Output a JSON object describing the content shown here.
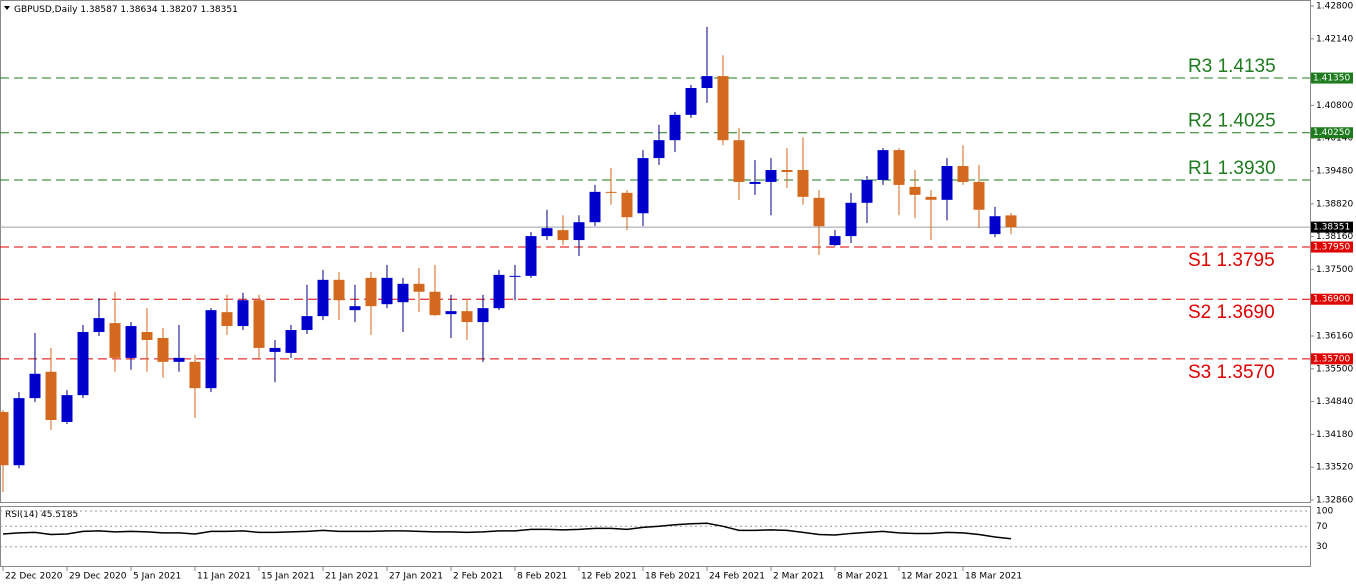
{
  "chart_data": {
    "type": "candlestick",
    "title": "GBPUSD,Daily",
    "categories": [
      "22 Dec 2020",
      null,
      null,
      null,
      "29 Dec 2020",
      null,
      null,
      null,
      "5 Jan 2021",
      null,
      null,
      null,
      "11 Jan 2021",
      null,
      null,
      null,
      "15 Jan 2021",
      null,
      null,
      null,
      "21 Jan 2021",
      null,
      null,
      null,
      "27 Jan 2021",
      null,
      null,
      null,
      "2 Feb 2021",
      null,
      null,
      null,
      "8 Feb 2021",
      null,
      null,
      null,
      "12 Feb 2021",
      null,
      null,
      null,
      "18 Feb 2021",
      null,
      null,
      null,
      "24 Feb 2021",
      null,
      null,
      null,
      "2 Mar 2021",
      null,
      null,
      null,
      "8 Mar 2021",
      null,
      null,
      null,
      "12 Mar 2021",
      null,
      null,
      null,
      "18 Mar 2021",
      null,
      null,
      null
    ],
    "open": [
      1.3463,
      1.3356,
      1.3491,
      1.3544,
      1.3443,
      1.3497,
      1.3624,
      1.3642,
      1.3572,
      1.3624,
      1.3612,
      1.3564,
      1.3564,
      1.3511,
      1.3664,
      1.3636,
      1.3688,
      1.3584,
      1.3582,
      1.3628,
      1.3656,
      1.3729,
      1.3668,
      1.3733,
      1.368,
      1.3684,
      1.3721,
      1.3705,
      1.366,
      1.3666,
      1.3644,
      1.3672,
      1.3735,
      1.3737,
      1.3817,
      1.3829,
      1.3809,
      1.3845,
      1.3906,
      1.3904,
      1.3863,
      1.3974,
      1.401,
      1.4061,
      1.4115,
      1.4139,
      1.401,
      1.3922,
      1.3926,
      1.395,
      1.395,
      1.3894,
      1.3799,
      1.3817,
      1.3884,
      1.393,
      1.399,
      1.3916,
      1.3896,
      1.389,
      1.3958,
      1.3926,
      1.3821,
      1.38587
    ],
    "high": [
      1.3467,
      1.3503,
      1.3622,
      1.3592,
      1.3507,
      1.3638,
      1.3692,
      1.3705,
      1.3644,
      1.3672,
      1.3632,
      1.3638,
      1.3578,
      1.3672,
      1.3699,
      1.3703,
      1.3699,
      1.3608,
      1.3638,
      1.3719,
      1.3749,
      1.3745,
      1.3719,
      1.3745,
      1.3759,
      1.3733,
      1.3753,
      1.3759,
      1.3699,
      1.3688,
      1.3699,
      1.3749,
      1.3759,
      1.3825,
      1.387,
      1.3859,
      1.3859,
      1.392,
      1.3954,
      1.391,
      1.399,
      1.4041,
      1.4067,
      1.4121,
      1.4238,
      1.4181,
      1.4035,
      1.397,
      1.3974,
      1.3994,
      1.4016,
      1.391,
      1.3829,
      1.3904,
      1.3938,
      1.3994,
      1.3994,
      1.395,
      1.391,
      1.3974,
      1.4,
      1.396,
      1.3876,
      1.38634
    ],
    "low": [
      1.3302,
      1.335,
      1.3483,
      1.3427,
      1.3439,
      1.3491,
      1.3616,
      1.3544,
      1.3548,
      1.3544,
      1.3532,
      1.3544,
      1.3451,
      1.3503,
      1.3618,
      1.3628,
      1.3572,
      1.3523,
      1.3572,
      1.362,
      1.3648,
      1.3648,
      1.3644,
      1.3618,
      1.3672,
      1.3624,
      1.3664,
      1.3656,
      1.3612,
      1.3608,
      1.3564,
      1.3668,
      1.3688,
      1.3733,
      1.3809,
      1.3799,
      1.3777,
      1.3837,
      1.388,
      1.3829,
      1.3837,
      1.396,
      1.3986,
      1.4055,
      1.4085,
      1.4,
      1.389,
      1.39,
      1.3859,
      1.3914,
      1.388,
      1.3779,
      1.3797,
      1.3803,
      1.3843,
      1.392,
      1.3859,
      1.3853,
      1.3809,
      1.3849,
      1.392,
      1.3833,
      1.3815,
      1.38207
    ],
    "close": [
      1.3356,
      1.3491,
      1.354,
      1.3447,
      1.3497,
      1.3624,
      1.3652,
      1.3572,
      1.3636,
      1.3608,
      1.3564,
      1.3572,
      1.3511,
      1.3668,
      1.3636,
      1.3688,
      1.3592,
      1.3592,
      1.3628,
      1.3656,
      1.3729,
      1.3688,
      1.3676,
      1.3676,
      1.3733,
      1.3721,
      1.3705,
      1.3658,
      1.3666,
      1.3644,
      1.3672,
      1.3739,
      1.3737,
      1.3817,
      1.3833,
      1.3809,
      1.3845,
      1.3906,
      1.3904,
      1.3855,
      1.3974,
      1.401,
      1.4061,
      1.4115,
      1.4139,
      1.401,
      1.3926,
      1.3926,
      1.395,
      1.3946,
      1.3896,
      1.3837,
      1.3817,
      1.3884,
      1.393,
      1.399,
      1.392,
      1.39,
      1.389,
      1.3958,
      1.3926,
      1.387,
      1.3857,
      1.38351
    ],
    "up_color": "#0000cd",
    "down_color": "#d2691e",
    "current_price_label": "1.38351",
    "ylim": [
      1.3286,
      1.428
    ],
    "yticks": [
      {
        "value": 1.428,
        "label": "1.42800"
      },
      {
        "value": 1.4214,
        "label": "1.42140"
      },
      {
        "value": 1.408,
        "label": "1.40800"
      },
      {
        "value": 1.4014,
        "label": "1.40140"
      },
      {
        "value": 1.3948,
        "label": "1.39480"
      },
      {
        "value": 1.3882,
        "label": "1.38820"
      },
      {
        "value": 1.3816,
        "label": "1.38160"
      },
      {
        "value": 1.375,
        "label": "1.37500"
      },
      {
        "value": 1.3616,
        "label": "1.36160"
      },
      {
        "value": 1.355,
        "label": "1.35500"
      },
      {
        "value": 1.3484,
        "label": "1.34840"
      },
      {
        "value": 1.3418,
        "label": "1.34180"
      },
      {
        "value": 1.3352,
        "label": "1.33520"
      },
      {
        "value": 1.3286,
        "label": "1.32860"
      }
    ],
    "levels": [
      {
        "name": "R3",
        "value": 1.4135,
        "axis_label": "1.41350",
        "color": "#1e7b1e"
      },
      {
        "name": "R2",
        "value": 1.4025,
        "axis_label": "1.40250",
        "color": "#1e7b1e"
      },
      {
        "name": "R1",
        "value": 1.393,
        "label": "1.3930",
        "color": "#1e7b1e"
      },
      {
        "name": "S1",
        "value": 1.3795,
        "axis_label": "1.37950",
        "color": "#e00000"
      },
      {
        "name": "S2",
        "value": 1.369,
        "label": "1.3690",
        "axis_label": "1.36900",
        "color": "#e00000"
      },
      {
        "name": "S3",
        "value": 1.357,
        "label": "1.3570",
        "axis_label": "1.35700",
        "color": "#e00000"
      }
    ],
    "rsi": {
      "name": "RSI(14)",
      "color": "#000000",
      "values": [
        55,
        57,
        58,
        54,
        55,
        60,
        61,
        59,
        60,
        59,
        57,
        57,
        55,
        60,
        60,
        61,
        58,
        58,
        59,
        60,
        62,
        60,
        60,
        60,
        61,
        61,
        60,
        59,
        59,
        58,
        59,
        61,
        61,
        64,
        64,
        63,
        64,
        66,
        66,
        64,
        68,
        70,
        73,
        75,
        76,
        70,
        62,
        62,
        63,
        62,
        58,
        54,
        53,
        56,
        58,
        60,
        57,
        56,
        56,
        58,
        57,
        54,
        49,
        45.5185
      ],
      "ylim": [
        0,
        100
      ],
      "yticks": [
        100,
        70,
        30
      ]
    }
  }
}
